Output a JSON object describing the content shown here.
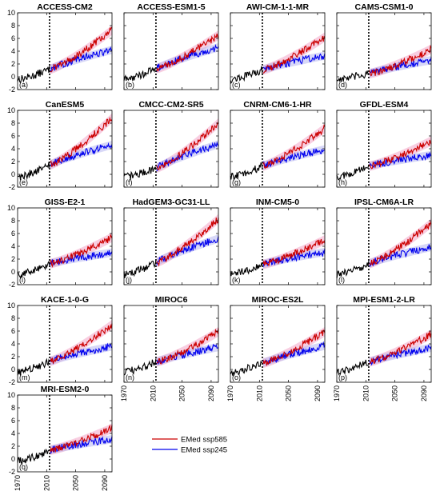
{
  "chart_data": {
    "type": "line",
    "xlim": [
      1970,
      2100
    ],
    "ylim": [
      -2,
      10
    ],
    "y_ticks": [
      "10",
      "8",
      "6",
      "4",
      "2",
      "0",
      "-2"
    ],
    "x_ticks": [
      "1970",
      "2010",
      "2050",
      "2090"
    ],
    "divider_year": 2014,
    "grid": false,
    "legend": {
      "placement": "bottom-right",
      "items": [
        {
          "label": "EMed ssp585",
          "color": "#cc0000"
        },
        {
          "label": "EMed ssp245",
          "color": "#0000ee"
        }
      ]
    },
    "colors": {
      "historical": "#000000",
      "ssp585": "#cc0000",
      "ssp245": "#0000ee",
      "spread585": "#f3a6c8",
      "spread245": "#b8b8f0"
    },
    "panels": [
      {
        "title": "ACCESS-CM2",
        "label": "(a)",
        "hist_end": 1.2,
        "ssp585_end": 7.3,
        "ssp245_end": 4.2
      },
      {
        "title": "ACCESS-ESM1-5",
        "label": "(b)",
        "hist_end": 1.3,
        "ssp585_end": 6.5,
        "ssp245_end": 4.6
      },
      {
        "title": "AWI-CM-1-1-MR",
        "label": "(c)",
        "hist_end": 1.1,
        "ssp585_end": 6.2,
        "ssp245_end": 3.3
      },
      {
        "title": "CAMS-CSM1-0",
        "label": "(d)",
        "hist_end": 0.5,
        "ssp585_end": 4.3,
        "ssp245_end": 2.6
      },
      {
        "title": "CanESM5",
        "label": "(e)",
        "hist_end": 1.5,
        "ssp585_end": 8.8,
        "ssp245_end": 4.6
      },
      {
        "title": "CMCC-CM2-SR5",
        "label": "(f)",
        "hist_end": 1.0,
        "ssp585_end": 8.0,
        "ssp245_end": 4.7
      },
      {
        "title": "CNRM-CM6-1-HR",
        "label": "(g)",
        "hist_end": 1.3,
        "ssp585_end": 7.2,
        "ssp245_end": 3.9
      },
      {
        "title": "GFDL-ESM4",
        "label": "(h)",
        "hist_end": 1.3,
        "ssp585_end": 5.2,
        "ssp245_end": 3.0
      },
      {
        "title": "GISS-E2-1",
        "label": "(i)",
        "hist_end": 1.3,
        "ssp585_end": 5.4,
        "ssp245_end": 3.0
      },
      {
        "title": "HadGEM3-GC31-LL",
        "label": "(j)",
        "hist_end": 1.5,
        "ssp585_end": 8.3,
        "ssp245_end": 5.2
      },
      {
        "title": "INM-CM5-0",
        "label": "(k)",
        "hist_end": 1.2,
        "ssp585_end": 5.0,
        "ssp245_end": 3.1
      },
      {
        "title": "IPSL-CM6A-LR",
        "label": "(l)",
        "hist_end": 1.3,
        "ssp585_end": 7.6,
        "ssp245_end": 3.9
      },
      {
        "title": "KACE-1-0-G",
        "label": "(m)",
        "hist_end": 1.3,
        "ssp585_end": 7.0,
        "ssp245_end": 3.6
      },
      {
        "title": "MIROC6",
        "label": "(n)",
        "hist_end": 1.2,
        "ssp585_end": 5.9,
        "ssp245_end": 3.5
      },
      {
        "title": "MIROC-ES2L",
        "label": "(o)",
        "hist_end": 1.0,
        "ssp585_end": 5.9,
        "ssp245_end": 3.7
      },
      {
        "title": "MPI-ESM1-2-LR",
        "label": "(p)",
        "hist_end": 1.2,
        "ssp585_end": 5.5,
        "ssp245_end": 3.4
      },
      {
        "title": "MRI-ESM2-0",
        "label": "(q)",
        "hist_end": 1.4,
        "ssp585_end": 4.8,
        "ssp245_end": 3.1
      }
    ]
  }
}
